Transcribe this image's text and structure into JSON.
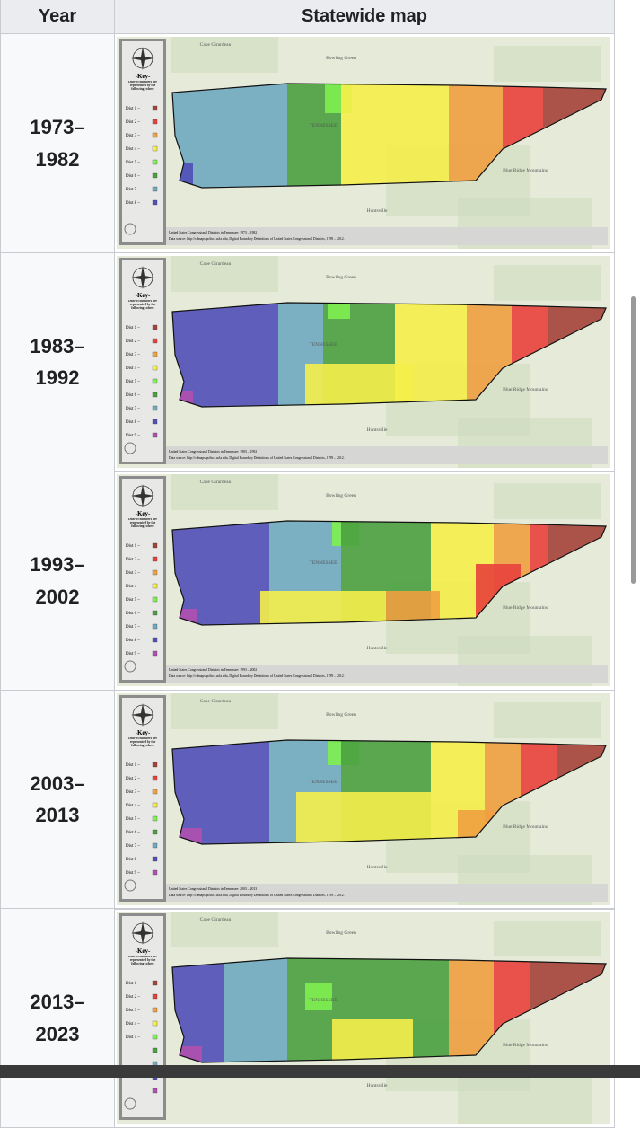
{
  "header": {
    "columns": [
      "Year",
      "Statewide map"
    ]
  },
  "shared": {
    "key_title": "-Key-",
    "key_note": "District numbers are represented by the following colors:",
    "places": [
      "Cape Girardeau",
      "Bowling Green",
      "TENNESSEE",
      "Huntsville",
      "Blue Ridge Mountains"
    ]
  },
  "rows": [
    {
      "year": "1973–1982",
      "caption": "United States Congressional Districts in Tennessee: 1973 – 1982",
      "source": "Data source: http://cdmaps.polisci.ucla.edu, Digital Boundary Definitions of United States Congressional Districts, 1789 – 2012.",
      "districts": [
        {
          "label": "Dist 1 –",
          "color": "#a5433a"
        },
        {
          "label": "Dist 2 –",
          "color": "#e8413c"
        },
        {
          "label": "Dist 3 –",
          "color": "#f0a040"
        },
        {
          "label": "Dist 4 –",
          "color": "#f5ee4a"
        },
        {
          "label": "Dist 5 –",
          "color": "#7ef050"
        },
        {
          "label": "Dist 6 –",
          "color": "#4aa040"
        },
        {
          "label": "Dist 7 –",
          "color": "#6fa8c0"
        },
        {
          "label": "Dist 8 –",
          "color": "#5050b8"
        }
      ]
    },
    {
      "year": "1983–1992",
      "caption": "United States Congressional Districts in Tennessee: 1983 – 1992",
      "source": "Data source: http://cdmaps.polisci.ucla.edu, Digital Boundary Definitions of United States Congressional Districts, 1789 – 2012.",
      "districts": [
        {
          "label": "Dist 1 –",
          "color": "#a5433a"
        },
        {
          "label": "Dist 2 –",
          "color": "#e8413c"
        },
        {
          "label": "Dist 3 –",
          "color": "#f0a040"
        },
        {
          "label": "Dist 4 –",
          "color": "#f5ee4a"
        },
        {
          "label": "Dist 5 –",
          "color": "#7ef050"
        },
        {
          "label": "Dist 6 –",
          "color": "#4aa040"
        },
        {
          "label": "Dist 7 –",
          "color": "#6fa8c0"
        },
        {
          "label": "Dist 8 –",
          "color": "#5050b8"
        },
        {
          "label": "Dist 9 –",
          "color": "#b050b0"
        }
      ]
    },
    {
      "year": "1993–2002",
      "caption": "United States Congressional Districts in Tennessee: 1993 – 2002",
      "source": "Data source: http://cdmaps.polisci.ucla.edu, Digital Boundary Definitions of United States Congressional Districts, 1789 – 2012.",
      "districts": [
        {
          "label": "Dist 1 –",
          "color": "#a5433a"
        },
        {
          "label": "Dist 2 –",
          "color": "#e8413c"
        },
        {
          "label": "Dist 3 –",
          "color": "#f0a040"
        },
        {
          "label": "Dist 4 –",
          "color": "#f5ee4a"
        },
        {
          "label": "Dist 5 –",
          "color": "#7ef050"
        },
        {
          "label": "Dist 6 –",
          "color": "#4aa040"
        },
        {
          "label": "Dist 7 –",
          "color": "#6fa8c0"
        },
        {
          "label": "Dist 8 –",
          "color": "#5050b8"
        },
        {
          "label": "Dist 9 –",
          "color": "#b050b0"
        }
      ]
    },
    {
      "year": "2003–2013",
      "caption": "United States Congressional Districts in Tennessee: 2003 – 2013",
      "source": "Data source: http://cdmaps.polisci.ucla.edu, Digital Boundary Definitions of United States Congressional Districts, 1789 – 2012.",
      "districts": [
        {
          "label": "Dist 1 –",
          "color": "#a5433a"
        },
        {
          "label": "Dist 2 –",
          "color": "#e8413c"
        },
        {
          "label": "Dist 3 –",
          "color": "#f0a040"
        },
        {
          "label": "Dist 4 –",
          "color": "#f5ee4a"
        },
        {
          "label": "Dist 5 –",
          "color": "#7ef050"
        },
        {
          "label": "Dist 6 –",
          "color": "#4aa040"
        },
        {
          "label": "Dist 7 –",
          "color": "#6fa8c0"
        },
        {
          "label": "Dist 8 –",
          "color": "#5050b8"
        },
        {
          "label": "Dist 9 –",
          "color": "#b050b0"
        }
      ]
    },
    {
      "year": "2013–2023",
      "districts": [
        {
          "label": "Dist 1 –",
          "color": "#a5433a"
        },
        {
          "label": "Dist 2 –",
          "color": "#e8413c"
        },
        {
          "label": "Dist 3 –",
          "color": "#f0a040"
        },
        {
          "label": "Dist 4 –",
          "color": "#f5ee4a"
        },
        {
          "label": "Dist 5 –",
          "color": "#7ef050"
        },
        {
          "color": "#4aa040"
        },
        {
          "color": "#6fa8c0"
        },
        {
          "color": "#5050b8"
        },
        {
          "color": "#b050b0"
        }
      ]
    }
  ]
}
